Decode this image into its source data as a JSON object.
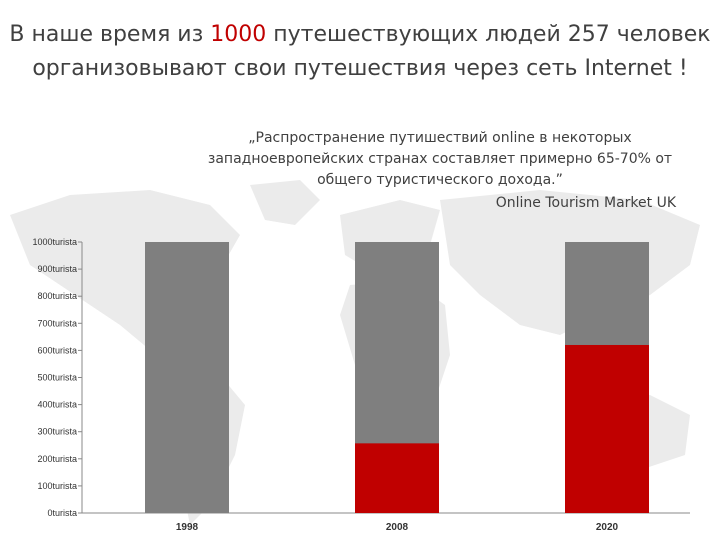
{
  "slide": {
    "title_part1": "В наше время из ",
    "title_highlight": "1000",
    "title_part2": " путешествующих людей 257 человек организовывают свои путешествия через сеть Internet !",
    "quote": "„Распространение путишествий online в некоторых западноевропейских странах составляет примерно 65-70% от общего туристического дохода.”",
    "source": "Online Tourism Market UK"
  },
  "colors": {
    "total": "#7f7f7f",
    "online": "#c00000",
    "axis": "#888888",
    "map": "#e9e9e9"
  },
  "chart_data": {
    "type": "bar",
    "stacked": "overlay",
    "categories": [
      "1998",
      "2008",
      "2020"
    ],
    "series": [
      {
        "values": [
          1000,
          1000,
          1000
        ]
      },
      {
        "values": [
          0,
          257,
          620
        ]
      }
    ],
    "yticks": [
      0,
      100,
      200,
      300,
      400,
      500,
      600,
      700,
      800,
      900,
      1000
    ],
    "ytick_labels": [
      "0turista",
      "100turista",
      "200turista",
      "300turista",
      "400turista",
      "500turista",
      "600turista",
      "700turista",
      "800turista",
      "900turista",
      "1000turista"
    ],
    "ylim": [
      0,
      1000
    ],
    "grid": false,
    "legend": "none"
  }
}
